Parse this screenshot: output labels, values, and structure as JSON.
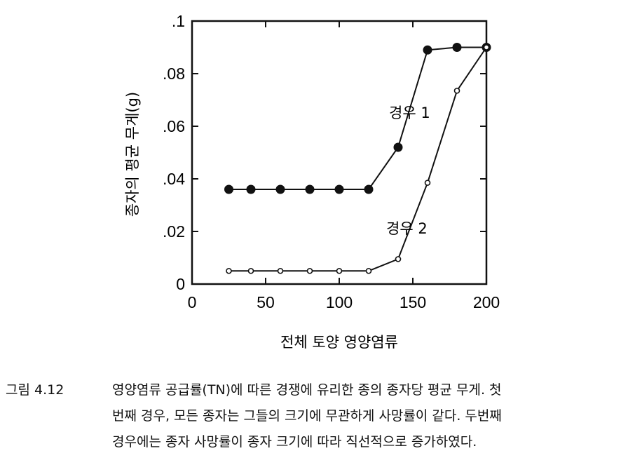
{
  "chart_data": {
    "type": "line",
    "xlabel": "전체 토양 영양염류",
    "ylabel": "종자의 평균 무게(g)",
    "xlim": [
      0,
      200
    ],
    "ylim": [
      0,
      0.1
    ],
    "x_ticks": [
      "0",
      "50",
      "100",
      "150",
      "200"
    ],
    "y_ticks": [
      "0",
      ".02",
      ".04",
      ".06",
      ".08",
      ".1"
    ],
    "series": [
      {
        "name": "경우 1",
        "marker": "filled-circle",
        "x": [
          25,
          40,
          60,
          80,
          100,
          120,
          140,
          160,
          180,
          200
        ],
        "y": [
          0.036,
          0.036,
          0.036,
          0.036,
          0.036,
          0.036,
          0.052,
          0.089,
          0.09,
          0.09
        ]
      },
      {
        "name": "경우 2",
        "marker": "open-circle",
        "x": [
          25,
          40,
          60,
          80,
          100,
          120,
          140,
          160,
          180,
          200
        ],
        "y": [
          0.005,
          0.005,
          0.005,
          0.005,
          0.005,
          0.005,
          0.0095,
          0.0385,
          0.0735,
          0.09
        ]
      }
    ],
    "grid": false,
    "legend": "inline labels"
  },
  "caption": {
    "label": "그림 4.12",
    "lines": [
      "영양염류 공급률(TN)에 따른 경쟁에 유리한 종의 종자당 평균 무게. 첫",
      "번째 경우, 모든 종자는 그들의 크기에 무관하게 사망률이 같다. 두번째",
      "경우에는 종자 사망률이 종자 크기에 따라 직선적으로 증가하였다."
    ]
  },
  "colors": {
    "ink": "#111111",
    "background": "#ffffff"
  }
}
